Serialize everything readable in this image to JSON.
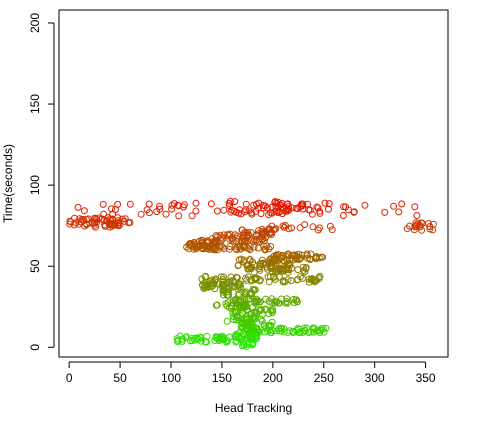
{
  "chart_data": {
    "type": "scatter",
    "title": "",
    "xlabel": "Head Tracking",
    "ylabel": "Time(seconds)",
    "xlim": [
      -10,
      372
    ],
    "ylim": [
      -6,
      208
    ],
    "x_ticks": [
      0,
      50,
      100,
      150,
      200,
      250,
      300,
      350
    ],
    "y_ticks": [
      0,
      50,
      100,
      150,
      200
    ],
    "grid": false,
    "legend": "none",
    "marker": "open-circle",
    "color_scale": {
      "by": "time",
      "low": "#22ee00",
      "high": "#ee1100"
    },
    "clusters": [
      {
        "time": [
          74,
          80
        ],
        "x": [
          0,
          60
        ],
        "count": 60
      },
      {
        "time": [
          81,
          89
        ],
        "x": [
          0,
          350
        ],
        "count": 70
      },
      {
        "time": [
          82,
          90
        ],
        "x": [
          155,
          230
        ],
        "count": 50
      },
      {
        "time": [
          72,
          76
        ],
        "x": [
          195,
          270
        ],
        "count": 18
      },
      {
        "time": [
          72,
          77
        ],
        "x": [
          330,
          360
        ],
        "count": 18
      },
      {
        "time": [
          69,
          73
        ],
        "x": [
          165,
          200
        ],
        "count": 22
      },
      {
        "time": [
          65,
          70
        ],
        "x": [
          140,
          195
        ],
        "count": 45
      },
      {
        "time": [
          60,
          66
        ],
        "x": [
          115,
          145
        ],
        "count": 55
      },
      {
        "time": [
          60,
          63
        ],
        "x": [
          130,
          200
        ],
        "count": 40
      },
      {
        "time": [
          54,
          58
        ],
        "x": [
          200,
          250
        ],
        "count": 40
      },
      {
        "time": [
          50,
          55
        ],
        "x": [
          165,
          220
        ],
        "count": 45
      },
      {
        "time": [
          46,
          50
        ],
        "x": [
          175,
          235
        ],
        "count": 40
      },
      {
        "time": [
          40,
          44
        ],
        "x": [
          130,
          250
        ],
        "count": 60
      },
      {
        "time": [
          36,
          40
        ],
        "x": [
          130,
          170
        ],
        "count": 45
      },
      {
        "time": [
          32,
          36
        ],
        "x": [
          150,
          185
        ],
        "count": 25
      },
      {
        "time": [
          27,
          30
        ],
        "x": [
          155,
          225
        ],
        "count": 45
      },
      {
        "time": [
          24,
          27
        ],
        "x": [
          140,
          180
        ],
        "count": 25
      },
      {
        "time": [
          20,
          24
        ],
        "x": [
          160,
          200
        ],
        "count": 25
      },
      {
        "time": [
          16,
          20
        ],
        "x": [
          155,
          190
        ],
        "count": 25
      },
      {
        "time": [
          12,
          16
        ],
        "x": [
          165,
          200
        ],
        "count": 25
      },
      {
        "time": [
          9,
          12
        ],
        "x": [
          170,
          255
        ],
        "count": 60
      },
      {
        "time": [
          5,
          9
        ],
        "x": [
          160,
          185
        ],
        "count": 25
      },
      {
        "time": [
          3,
          7
        ],
        "x": [
          105,
          185
        ],
        "count": 55
      },
      {
        "time": [
          0,
          3
        ],
        "x": [
          168,
          182
        ],
        "count": 10
      }
    ]
  }
}
